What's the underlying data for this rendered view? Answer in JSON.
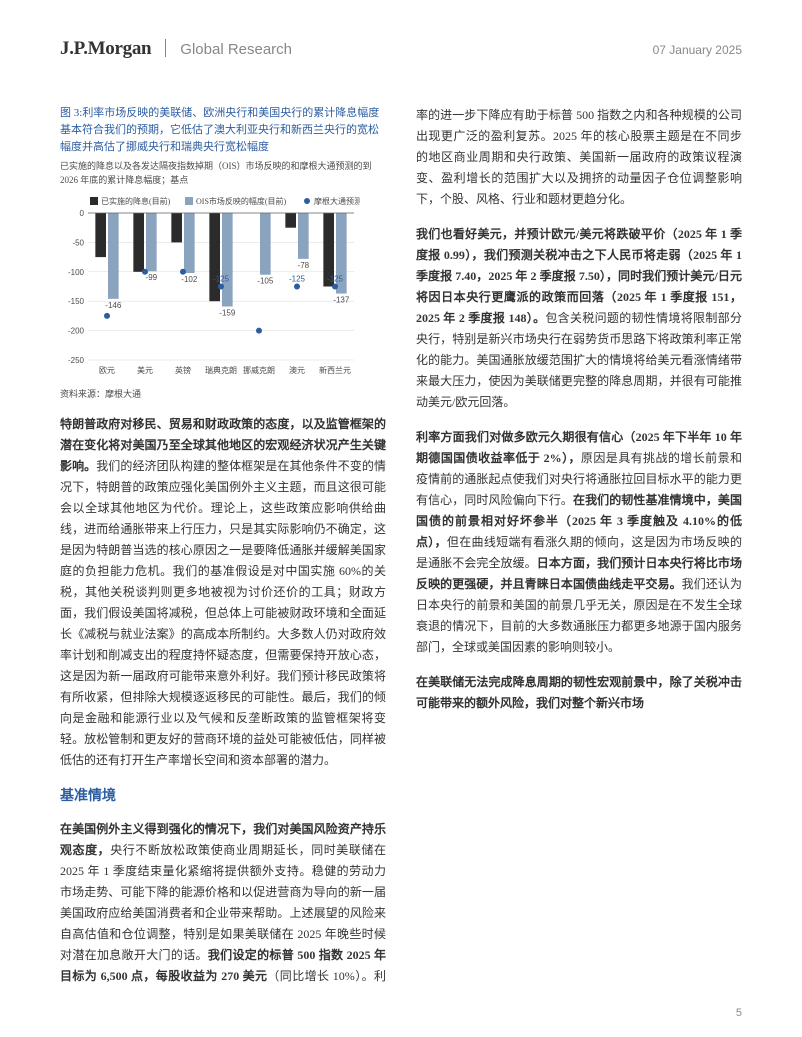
{
  "header": {
    "logo": "J.P.Morgan",
    "subbrand": "Global Research",
    "date": "07 January 2025"
  },
  "figure": {
    "label": "图 3:",
    "title": "利率市场反映的美联储、欧洲央行和美国央行的累计降息幅度基本符合我们的预期，它低估了澳大利亚央行和新西兰央行的宽松幅度并高估了挪威央行和瑞典央行宽松幅度",
    "subtitle": "已实施的降息以及各发达隔夜指数掉期（OIS）市场反映的和摩根大通预测的到 2026 年底的累计降息幅度；基点",
    "source": "资料来源：摩根大通",
    "legend": [
      "已实施的降息(目前)",
      "OIS市场反映的幅度(目前)",
      "摩根大通预测"
    ],
    "categories": [
      "欧元",
      "美元",
      "英镑",
      "瑞典克朗",
      "挪威克朗",
      "澳元",
      "新西兰元"
    ],
    "series": {
      "implemented": [
        -75,
        -100,
        -50,
        -150,
        0,
        -25,
        -125
      ],
      "ois": [
        -146,
        -99,
        -102,
        -159,
        -105,
        -78,
        -137
      ],
      "forecast": [
        -175,
        -100,
        -100,
        -125,
        -200,
        -125,
        -125
      ]
    },
    "labels_forecast": [
      "",
      "",
      "",
      "-125",
      "",
      "-125",
      "-125"
    ],
    "ylim": [
      -250,
      0
    ],
    "yticks": [
      0,
      -50,
      -100,
      -150,
      -200,
      -250
    ],
    "colors": {
      "implemented": "#2b2b2b",
      "ois": "#8aa4c0",
      "forecast": "#2c5ca1",
      "axis": "#666666",
      "grid": "#d8d8d8",
      "background": "#ffffff",
      "text": "#4a4a4a"
    },
    "font_size_axis": 8,
    "font_size_legend": 8,
    "font_size_barlabel": 8,
    "bar_group_width": 0.8
  },
  "left": {
    "p1_bold": "特朗普政府对移民、贸易和财政政策的态度，以及监管框架的潜在变化将对美国乃至全球其他地区的宏观经济状况产生关键影响。",
    "p1": "我们的经济团队构建的整体框架是在其他条件不变的情况下，特朗普的政策应强化美国例外主义主题，而且这很可能会以全球其他地区为代价。理论上，这些政策应影响供给曲线，进而给通胀带来上行压力，只是其实际影响仍不确定，这是因为特朗普当选的核心原因之一是要降低通胀并缓解美国家庭的负担能力危机。我们的基准假设是对中国实施 60%的关税，其他关税谈判则更多地被视为讨价还价的工具；财政方面，我们假设美国将减税，但总体上可能被财政环境和全面延长《减税与就业法案》的高成本所制约。大多数人仍对政府效率计划和削减支出的程度持怀疑态度，但需要保持开放心态，这是因为新一届政府可能带来意外利好。我们预计移民政策将有所收紧，但排除大规模逐返移民的可能性。最后，我们的倾向是金融和能源行业以及气候和反垄断政策的监管框架将变轻。放松管制和更友好的营商环境的益处可能被低估，同样被低估的还有打开生产率增长空间和资本部署的潜力。"
  },
  "right": {
    "heading": "基准情境",
    "p2_bold1": "在美国例外主义得到强化的情况下，我们对美国风险资产持乐观态度，",
    "p2_a": "央行不断放松政策使商业周期延长，同时美联储在 2025 年 1 季度结束量化紧缩将提供额外支持。稳健的劳动力市场走势、可能下降的能源价格和以促进营商为导向的新一届美国政府应给美国消费者和企业带来帮助。上述展望的风险来自高估值和仓位调整，特别是如果美联储在 2025 年晚些时候对潜在加息敞开大门的话。",
    "p2_bold2": "我们设定的标普 500 指数 2025 年目标为 6,500 点，每股收益为 270 美元",
    "p2_b": "（同比增长 10%）。利率的进一步下降应有助于标普 500 指数之内和各种规模的公司出现更广泛的盈利复苏。2025 年的核心股票主题是在不同步的地区商业周期和央行政策、美国新一届政府的政策议程演变、盈利增长的范围扩大以及拥挤的动量因子仓位调整影响下，个股、风格、行业和题材更趋分化。",
    "p3_bold": "我们也看好美元，并预计欧元/美元将跌破平价（2025 年 1 季度报 0.99），我们预测关税冲击之下人民币将走弱（2025 年 1 季度报 7.40，2025 年 2 季度报 7.50），同时我们预计美元/日元将因日本央行更鹰派的政策而回落（2025 年 1 季度报 151，2025 年 2 季度报 148）。",
    "p3": "包含关税问题的韧性情境将限制部分央行，特别是新兴市场央行在弱势货币思路下将政策利率正常化的能力。美国通胀放缓范围扩大的情境将给美元看涨情绪带来最大压力，使因为美联储更完整的降息周期，并很有可能推动美元/欧元回落。",
    "p4_bold1": "利率方面我们对做多欧元久期很有信心（2025 年下半年 10 年期德国国债收益率低于 2%），",
    "p4_a": "原因是具有挑战的增长前景和疫情前的通胀起点使我们对央行将通胀拉回目标水平的能力更有信心，同时风险偏向下行。",
    "p4_bold2": "在我们的韧性基准情境中，美国国债的前景相对好坏参半（2025 年 3 季度触及 4.10%的低点），",
    "p4_b": "但在曲线短端有看涨久期的倾向，这是因为市场反映的是通胀不会完全放缓。",
    "p4_bold3": "日本方面，我们预计日本央行将比市场反映的更强硬，并且青睐日本国债曲线走平交易。",
    "p4_c": "我们还认为日本央行的前景和美国的前景几乎无关，原因是在不发生全球衰退的情况下，目前的大多数通胀压力都更多地源于国内服务部门，全球或美国因素的影响则较小。",
    "p5_bold": "在美联储无法完成降息周期的韧性宏观前景中，除了关税冲击可能带来的额外风险，我们对整个新兴市场"
  },
  "pagenum": "5"
}
